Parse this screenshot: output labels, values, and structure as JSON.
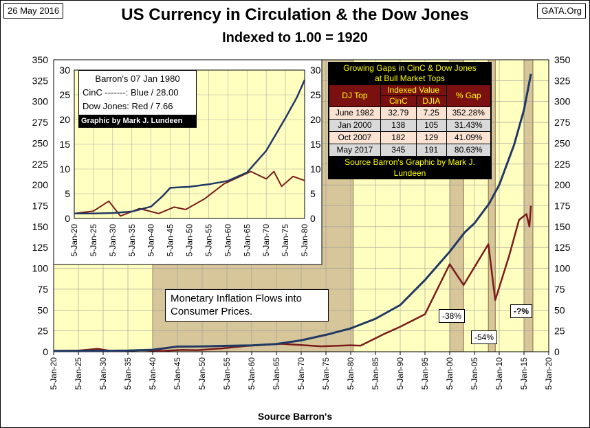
{
  "header": {
    "date": "26 May 2016",
    "site": "GATA.Org",
    "title": "US Currency in Circulation & the Dow Jones",
    "subtitle": "Indexed to 1.00 = 1920",
    "x_title": "Source Barron's"
  },
  "colors": {
    "cinc": "#1f3864",
    "djia": "#7b1a1a",
    "plot_bg": "#ffffc0",
    "bear_shade": "#d6c69a"
  },
  "annotations": {
    "inflation_text": "Monetary Inflation Flows into Consumer Prices.",
    "drop1": "-38%",
    "drop2": "-54%",
    "drop3": "-?%"
  },
  "gap_table": {
    "title_line1": "Growing Gaps in CinC & Dow Jones",
    "title_line2": "at Bull Market Tops",
    "col_djtop": "DJ Top",
    "col_indexed": "Indexed Value",
    "col_cinc": "CinC",
    "col_djia": "DJIA",
    "col_gap": "% Gap",
    "rows": [
      {
        "top": "June 1982",
        "cinc": "32.79",
        "djia": "7.25",
        "gap": "352.28%"
      },
      {
        "top": "Jan 2000",
        "cinc": "138",
        "djia": "105",
        "gap": "31.43%"
      },
      {
        "top": "Oct 2007",
        "cinc": "182",
        "djia": "129",
        "gap": "41.09%"
      },
      {
        "top": "May 2017",
        "cinc": "345",
        "djia": "191",
        "gap": "80.63%"
      }
    ],
    "footer": "Source Barron's Graphic by Mark J. Lundeen"
  },
  "inset": {
    "title": "Barron's 07 Jan 1980",
    "cinc_line": "CinC -------: Blue / 28.00",
    "dj_line": "Dow Jones: Red /  7.66",
    "credit": "Graphic by Mark J. Lundeen"
  },
  "chart_data": [
    {
      "type": "line",
      "title": "US Currency in Circulation & the Dow Jones",
      "subtitle": "Indexed to 1.00 = 1920",
      "xlabel": "Source Barron's",
      "ylabel": "",
      "ylim": [
        0,
        350
      ],
      "y_ticks": [
        0,
        25,
        50,
        75,
        100,
        125,
        150,
        175,
        200,
        225,
        250,
        275,
        300,
        325,
        350
      ],
      "x_ticks": [
        "5-Jan-20",
        "5-Jan-25",
        "5-Jan-30",
        "5-Jan-35",
        "5-Jan-40",
        "5-Jan-45",
        "5-Jan-50",
        "5-Jan-55",
        "5-Jan-60",
        "5-Jan-65",
        "5-Jan-70",
        "5-Jan-75",
        "5-Jan-80",
        "5-Jan-85",
        "5-Jan-90",
        "5-Jan-95",
        "5-Jan-00",
        "5-Jan-05",
        "5-Jan-10",
        "5-Jan-15",
        "5-Jan-20"
      ],
      "grid": true,
      "shaded_periods": [
        [
          1940,
          1980.5
        ],
        [
          2000.0,
          2002.8
        ],
        [
          2007.8,
          2009.2
        ],
        [
          2015.0,
          2016.8
        ]
      ],
      "series": [
        {
          "name": "CinC",
          "x": [
            1920,
            1925,
            1930,
            1935,
            1940,
            1945,
            1950,
            1955,
            1960,
            1965,
            1970,
            1975,
            1980,
            1985,
            1990,
            1995,
            2000,
            2003,
            2005,
            2008,
            2010,
            2013,
            2015,
            2016.4
          ],
          "values": [
            1.0,
            1.0,
            1.1,
            1.4,
            2.4,
            6.2,
            6.4,
            7.1,
            7.6,
            9.3,
            13.7,
            20.3,
            28.0,
            39.5,
            56.0,
            86.0,
            120.0,
            143.0,
            154.0,
            178.0,
            200.0,
            248.0,
            290.0,
            333.0
          ]
        },
        {
          "name": "Dow Jones",
          "x": [
            1920,
            1925,
            1929,
            1932,
            1937,
            1942,
            1946,
            1949,
            1954,
            1959,
            1966,
            1970,
            1974,
            1980,
            1982,
            1987,
            1990,
            1995,
            2000,
            2002.8,
            2007.8,
            2009.2,
            2012,
            2014,
            2015.5,
            2016.1,
            2016.4
          ],
          "values": [
            1.0,
            1.5,
            3.5,
            0.5,
            2.0,
            1.0,
            2.3,
            1.8,
            4.0,
            7.0,
            9.5,
            8.0,
            6.5,
            7.7,
            7.3,
            22.0,
            30.0,
            45.0,
            105.0,
            80.0,
            129.0,
            62.0,
            115.0,
            158.0,
            165.0,
            150.0,
            175.0
          ]
        }
      ]
    },
    {
      "type": "line",
      "title": "Barron's 07 Jan 1980",
      "ylim": [
        0,
        30
      ],
      "y_ticks": [
        0,
        5,
        10,
        15,
        20,
        25,
        30
      ],
      "x_ticks": [
        "5-Jan-20",
        "5-Jan-25",
        "5-Jan-30",
        "5-Jan-35",
        "5-Jan-40",
        "5-Jan-45",
        "5-Jan-50",
        "5-Jan-55",
        "5-Jan-60",
        "5-Jan-65",
        "5-Jan-70",
        "5-Jan-75",
        "5-Jan-80"
      ],
      "grid": true,
      "series": [
        {
          "name": "CinC",
          "x": [
            1920,
            1925,
            1930,
            1935,
            1940,
            1943,
            1945,
            1950,
            1955,
            1960,
            1965,
            1970,
            1975,
            1978,
            1980
          ],
          "values": [
            1.0,
            1.0,
            1.1,
            1.4,
            2.4,
            4.5,
            6.2,
            6.4,
            6.9,
            7.6,
            9.3,
            13.7,
            20.3,
            24.5,
            28.0
          ]
        },
        {
          "name": "Dow Jones",
          "x": [
            1920,
            1925,
            1929,
            1932,
            1937,
            1942,
            1946,
            1949,
            1954,
            1959,
            1966,
            1970,
            1972,
            1974,
            1977,
            1980
          ],
          "values": [
            1.0,
            1.5,
            3.5,
            0.5,
            2.0,
            1.0,
            2.3,
            1.8,
            4.0,
            7.0,
            9.5,
            8.0,
            9.5,
            6.5,
            8.5,
            7.66
          ]
        }
      ]
    }
  ]
}
